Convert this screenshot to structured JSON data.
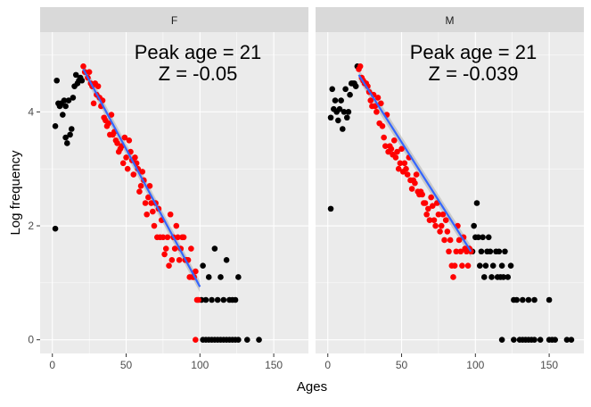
{
  "chart_data": {
    "type": "scatter",
    "xlabel": "Ages",
    "ylabel": "Log frequency",
    "x_ticks": [
      0,
      50,
      100,
      150
    ],
    "y_ticks": [
      0,
      2,
      4
    ],
    "colors": {
      "panel_bg": "#ebebeb",
      "strip_bg": "#d9d9d9",
      "grid": "#ffffff",
      "pre_peak": "#000000",
      "fit_range": "#ff0000",
      "fit_line": "#3366ff",
      "ribbon": "#a0a0a0"
    },
    "panels": [
      {
        "facet": "F",
        "annotation_line1": "Peak age = 21",
        "annotation_line2": "Z = -0.05",
        "fit_line": {
          "x": [
            21,
            100
          ],
          "y": [
            4.75,
            0.93
          ]
        },
        "points_black": [
          [
            2,
            1.95
          ],
          [
            2,
            3.75
          ],
          [
            3,
            4.55
          ],
          [
            4,
            4.15
          ],
          [
            5,
            4.1
          ],
          [
            6,
            4.15
          ],
          [
            7,
            3.95
          ],
          [
            8,
            4.2
          ],
          [
            9,
            4.1
          ],
          [
            9,
            3.55
          ],
          [
            10,
            3.45
          ],
          [
            11,
            4.2
          ],
          [
            12,
            3.6
          ],
          [
            13,
            3.7
          ],
          [
            14,
            4.25
          ],
          [
            15,
            4.45
          ],
          [
            16,
            4.65
          ],
          [
            17,
            4.5
          ],
          [
            18,
            4.55
          ],
          [
            19,
            4.6
          ],
          [
            20,
            4.55
          ],
          [
            101,
            0.7
          ],
          [
            102,
            1.3
          ],
          [
            104,
            0.7
          ],
          [
            106,
            1.1
          ],
          [
            108,
            0.7
          ],
          [
            110,
            1.6
          ],
          [
            112,
            0.7
          ],
          [
            114,
            1.1
          ],
          [
            116,
            0.7
          ],
          [
            118,
            1.4
          ],
          [
            120,
            0.7
          ],
          [
            122,
            0.7
          ],
          [
            124,
            0.7
          ],
          [
            126,
            1.1
          ],
          [
            102,
            0
          ],
          [
            104,
            0
          ],
          [
            106,
            0
          ],
          [
            108,
            0
          ],
          [
            110,
            0
          ],
          [
            112,
            0
          ],
          [
            114,
            0
          ],
          [
            116,
            0
          ],
          [
            118,
            0
          ],
          [
            120,
            0
          ],
          [
            122,
            0
          ],
          [
            124,
            0
          ],
          [
            126,
            0
          ],
          [
            132,
            0
          ],
          [
            140,
            0
          ]
        ],
        "points_red": [
          [
            21,
            4.8
          ],
          [
            22,
            4.7
          ],
          [
            24,
            4.6
          ],
          [
            25,
            4.7
          ],
          [
            26,
            4.5
          ],
          [
            27,
            4.45
          ],
          [
            28,
            4.15
          ],
          [
            29,
            4.5
          ],
          [
            30,
            4.3
          ],
          [
            31,
            4.45
          ],
          [
            32,
            4.25
          ],
          [
            33,
            4.1
          ],
          [
            34,
            4.2
          ],
          [
            35,
            3.9
          ],
          [
            36,
            3.85
          ],
          [
            37,
            3.75
          ],
          [
            38,
            3.8
          ],
          [
            39,
            3.6
          ],
          [
            40,
            3.95
          ],
          [
            41,
            3.6
          ],
          [
            42,
            3.65
          ],
          [
            43,
            3.5
          ],
          [
            44,
            3.45
          ],
          [
            45,
            3.3
          ],
          [
            46,
            3.35
          ],
          [
            47,
            3.4
          ],
          [
            48,
            3.1
          ],
          [
            49,
            3.55
          ],
          [
            50,
            3.2
          ],
          [
            51,
            3.0
          ],
          [
            52,
            3.5
          ],
          [
            53,
            3.3
          ],
          [
            54,
            3.15
          ],
          [
            55,
            2.9
          ],
          [
            56,
            3.2
          ],
          [
            57,
            3.1
          ],
          [
            58,
            3.0
          ],
          [
            59,
            2.6
          ],
          [
            60,
            2.7
          ],
          [
            61,
            2.95
          ],
          [
            62,
            2.8
          ],
          [
            63,
            2.4
          ],
          [
            64,
            2.2
          ],
          [
            65,
            2.5
          ],
          [
            66,
            2.7
          ],
          [
            67,
            2.4
          ],
          [
            68,
            2.25
          ],
          [
            69,
            2.0
          ],
          [
            70,
            2.4
          ],
          [
            71,
            1.8
          ],
          [
            72,
            2.3
          ],
          [
            73,
            1.8
          ],
          [
            74,
            2.1
          ],
          [
            75,
            1.8
          ],
          [
            76,
            1.5
          ],
          [
            77,
            1.6
          ],
          [
            78,
            1.8
          ],
          [
            79,
            1.3
          ],
          [
            80,
            2.2
          ],
          [
            81,
            1.4
          ],
          [
            82,
            1.8
          ],
          [
            83,
            1.6
          ],
          [
            84,
            2.0
          ],
          [
            85,
            1.8
          ],
          [
            86,
            1.4
          ],
          [
            87,
            1.6
          ],
          [
            88,
            1.8
          ],
          [
            89,
            1.8
          ],
          [
            90,
            1.4
          ],
          [
            91,
            1.4
          ],
          [
            92,
            1.4
          ],
          [
            93,
            1.1
          ],
          [
            94,
            1.6
          ],
          [
            95,
            1.1
          ],
          [
            96,
            1.1
          ],
          [
            97,
            1.2
          ],
          [
            98,
            0.7
          ],
          [
            99,
            0.7
          ],
          [
            97,
            0
          ]
        ]
      },
      {
        "facet": "M",
        "annotation_line1": "Peak age = 21",
        "annotation_line2": "Z = -0.039",
        "fit_line": {
          "x": [
            21,
            97
          ],
          "y": [
            4.65,
            1.55
          ]
        },
        "points_black": [
          [
            2,
            2.3
          ],
          [
            2,
            3.9
          ],
          [
            3,
            4.4
          ],
          [
            4,
            4.05
          ],
          [
            5,
            4.2
          ],
          [
            6,
            4.0
          ],
          [
            7,
            3.85
          ],
          [
            8,
            4.05
          ],
          [
            9,
            4.2
          ],
          [
            10,
            3.7
          ],
          [
            11,
            4.0
          ],
          [
            12,
            4.4
          ],
          [
            13,
            3.9
          ],
          [
            14,
            4.0
          ],
          [
            15,
            4.3
          ],
          [
            16,
            4.5
          ],
          [
            17,
            4.5
          ],
          [
            18,
            4.5
          ],
          [
            19,
            4.45
          ],
          [
            20,
            4.8
          ],
          [
            98,
            1.55
          ],
          [
            99,
            2.0
          ],
          [
            100,
            1.8
          ],
          [
            101,
            2.4
          ],
          [
            102,
            1.8
          ],
          [
            103,
            1.3
          ],
          [
            104,
            1.55
          ],
          [
            105,
            1.8
          ],
          [
            106,
            1.1
          ],
          [
            107,
            1.3
          ],
          [
            108,
            1.55
          ],
          [
            109,
            1.8
          ],
          [
            110,
            1.55
          ],
          [
            111,
            1.1
          ],
          [
            112,
            1.3
          ],
          [
            114,
            1.55
          ],
          [
            115,
            1.1
          ],
          [
            116,
            1.55
          ],
          [
            117,
            1.1
          ],
          [
            118,
            1.3
          ],
          [
            119,
            1.1
          ],
          [
            120,
            1.55
          ],
          [
            122,
            1.1
          ],
          [
            124,
            1.3
          ],
          [
            126,
            0.7
          ],
          [
            128,
            0.7
          ],
          [
            132,
            0.7
          ],
          [
            136,
            0.7
          ],
          [
            140,
            0.7
          ],
          [
            150,
            0.7
          ],
          [
            118,
            0
          ],
          [
            126,
            0
          ],
          [
            130,
            0
          ],
          [
            132,
            0
          ],
          [
            134,
            0
          ],
          [
            136,
            0
          ],
          [
            138,
            0
          ],
          [
            140,
            0
          ],
          [
            144,
            0
          ],
          [
            150,
            0
          ],
          [
            152,
            0
          ],
          [
            154,
            0
          ],
          [
            162,
            0
          ],
          [
            165,
            0
          ]
        ],
        "points_red": [
          [
            21,
            4.75
          ],
          [
            22,
            4.8
          ],
          [
            23,
            4.6
          ],
          [
            24,
            4.55
          ],
          [
            25,
            4.5
          ],
          [
            26,
            4.5
          ],
          [
            27,
            4.45
          ],
          [
            28,
            4.35
          ],
          [
            29,
            4.2
          ],
          [
            30,
            4.1
          ],
          [
            31,
            4.3
          ],
          [
            32,
            4.1
          ],
          [
            33,
            4.0
          ],
          [
            34,
            4.25
          ],
          [
            35,
            3.8
          ],
          [
            36,
            4.15
          ],
          [
            37,
            3.75
          ],
          [
            38,
            3.55
          ],
          [
            39,
            3.4
          ],
          [
            40,
            3.95
          ],
          [
            41,
            3.3
          ],
          [
            42,
            3.4
          ],
          [
            43,
            3.35
          ],
          [
            44,
            3.25
          ],
          [
            45,
            3.5
          ],
          [
            46,
            3.2
          ],
          [
            47,
            3.3
          ],
          [
            48,
            3.0
          ],
          [
            49,
            3.1
          ],
          [
            50,
            3.35
          ],
          [
            51,
            2.95
          ],
          [
            52,
            3.1
          ],
          [
            53,
            3.0
          ],
          [
            54,
            2.9
          ],
          [
            55,
            3.2
          ],
          [
            56,
            2.8
          ],
          [
            57,
            2.65
          ],
          [
            58,
            2.8
          ],
          [
            59,
            2.75
          ],
          [
            60,
            2.9
          ],
          [
            61,
            2.6
          ],
          [
            62,
            2.55
          ],
          [
            63,
            2.6
          ],
          [
            64,
            2.55
          ],
          [
            65,
            2.4
          ],
          [
            66,
            2.4
          ],
          [
            67,
            2.2
          ],
          [
            68,
            2.3
          ],
          [
            69,
            2.1
          ],
          [
            70,
            2.5
          ],
          [
            71,
            2.35
          ],
          [
            72,
            2.1
          ],
          [
            73,
            2.0
          ],
          [
            74,
            2.4
          ],
          [
            75,
            2.2
          ],
          [
            76,
            1.9
          ],
          [
            77,
            2.0
          ],
          [
            78,
            2.2
          ],
          [
            79,
            1.75
          ],
          [
            80,
            2.1
          ],
          [
            81,
            1.9
          ],
          [
            82,
            1.55
          ],
          [
            83,
            1.75
          ],
          [
            84,
            1.3
          ],
          [
            85,
            1.1
          ],
          [
            86,
            1.3
          ],
          [
            87,
            1.55
          ],
          [
            88,
            2.0
          ],
          [
            89,
            1.75
          ],
          [
            90,
            1.55
          ],
          [
            91,
            1.3
          ],
          [
            92,
            1.8
          ],
          [
            93,
            1.6
          ],
          [
            94,
            1.55
          ],
          [
            95,
            1.3
          ],
          [
            96,
            1.6
          ],
          [
            97,
            1.55
          ]
        ]
      }
    ]
  }
}
